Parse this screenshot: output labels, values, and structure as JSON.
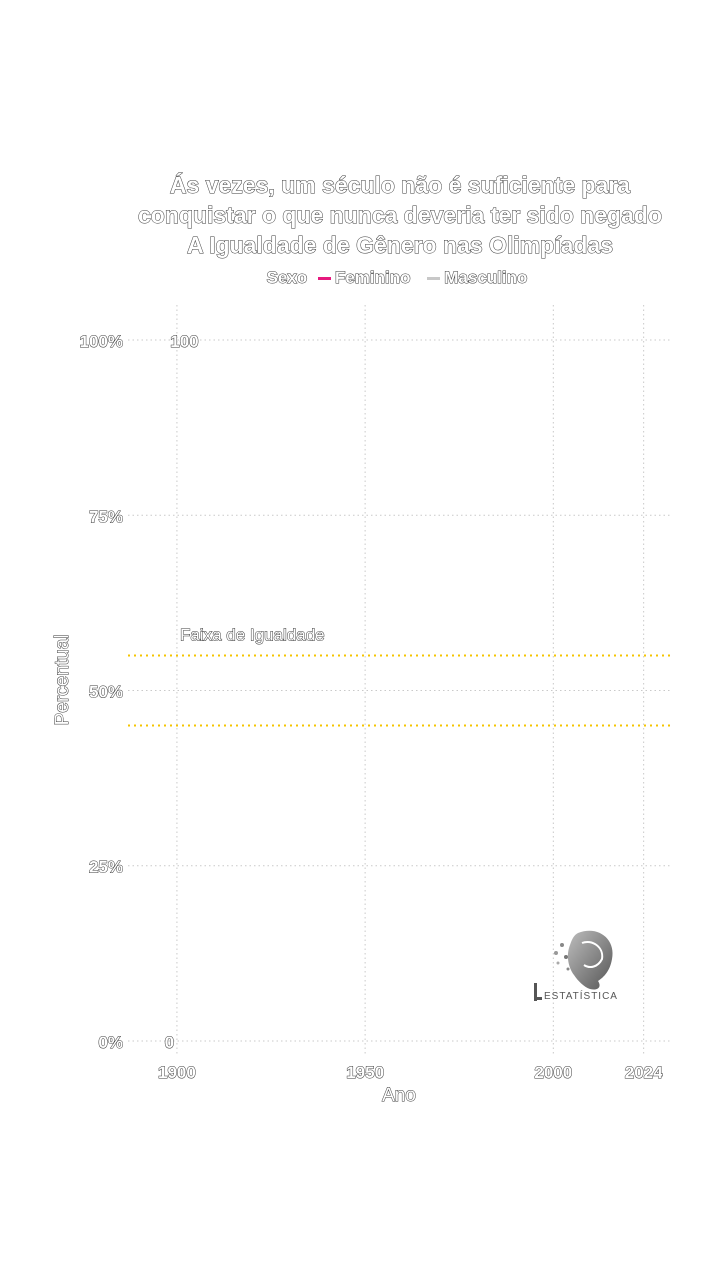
{
  "chart_data": {
    "type": "line",
    "title_lines": [
      "Ás vezes, um século não é suficiente para",
      "conquistar o que nunca deveria ter sido negado",
      "A Igualdade de Gênero nas Olimpíadas"
    ],
    "legend": {
      "title": "Sexo",
      "entries": [
        {
          "name": "Feminino",
          "color": "#e6197e"
        },
        {
          "name": "Masculino",
          "color": "#c8c8c8"
        }
      ],
      "placement": "top"
    },
    "xlabel": "Ano",
    "ylabel": "Percentual",
    "x_ticks": [
      1900,
      1950,
      2000,
      2024
    ],
    "y_ticks": [
      0,
      25,
      50,
      75,
      100
    ],
    "y_tick_labels": [
      "0%",
      "25%",
      "50%",
      "75%",
      "100%"
    ],
    "xlim": [
      1887,
      2031
    ],
    "ylim": [
      -2,
      105
    ],
    "grid": true,
    "equality_band": {
      "label": "Faixa de Igualdade",
      "lower": 45,
      "upper": 55,
      "color": "#f5c400"
    },
    "annotations": [
      {
        "text": "100",
        "x": 1902,
        "y": 100
      },
      {
        "text": "0",
        "x": 1898,
        "y": 0
      }
    ],
    "series": [
      {
        "name": "Feminino",
        "values": []
      },
      {
        "name": "Masculino",
        "values": []
      }
    ]
  },
  "logo": {
    "text": "ESTATÍSTICA"
  }
}
